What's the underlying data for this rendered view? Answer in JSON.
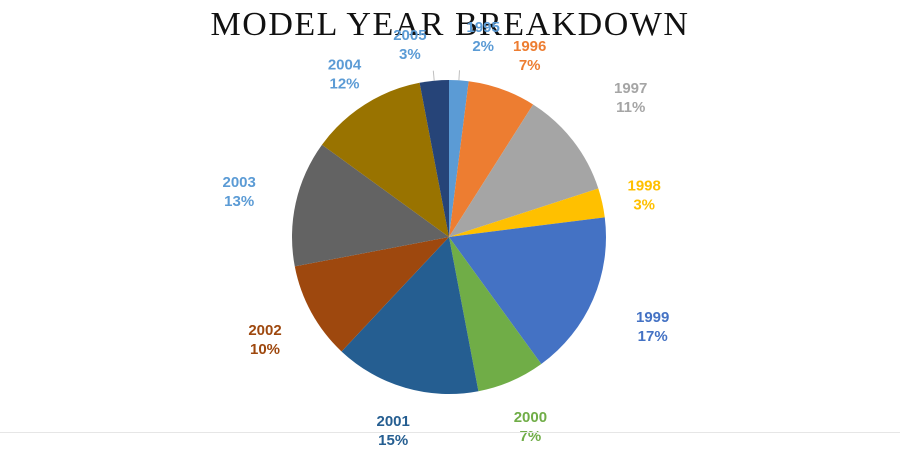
{
  "chart_data": {
    "type": "pie",
    "title": "MODEL YEAR BREAKDOWN",
    "categories": [
      "1995",
      "1996",
      "1997",
      "1998",
      "1999",
      "2000",
      "2001",
      "2002",
      "2003",
      "2004",
      "2005"
    ],
    "values": [
      2,
      7,
      11,
      3,
      17,
      7,
      15,
      10,
      13,
      12,
      3
    ],
    "value_labels": [
      "2%",
      "7%",
      "11%",
      "3%",
      "17%",
      "7%",
      "15%",
      "10%",
      "13%",
      "12%",
      "3%"
    ],
    "colors": [
      "#5B9BD5",
      "#ED7D31",
      "#A5A5A5",
      "#FFC000",
      "#4472C4",
      "#70AD47",
      "#255E91",
      "#9E480E",
      "#636363",
      "#997300",
      "#264478"
    ],
    "label_colors": [
      "#5B9BD5",
      "#ED7D31",
      "#A5A5A5",
      "#FFC000",
      "#4472C4",
      "#70AD47",
      "#255E91",
      "#9E480E",
      "#5B9BD5",
      "#5B9BD5",
      "#5B9BD5"
    ],
    "start": "12 o'clock",
    "direction": "clockwise",
    "legend": "none"
  }
}
